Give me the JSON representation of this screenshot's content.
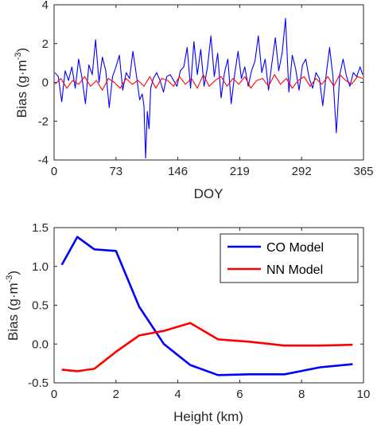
{
  "colors": {
    "co_model": "#0000ff",
    "nn_model": "#ff0000",
    "axes": "#262626",
    "background": "#ffffff"
  },
  "chart_data": [
    {
      "type": "line",
      "title": "",
      "xlabel": "DOY",
      "ylabel": {
        "prefix": "Bias (g·m",
        "superscript": "-3",
        "suffix": ")"
      },
      "xlim": [
        0,
        365
      ],
      "ylim": [
        -4,
        4
      ],
      "xticks": [
        0,
        73,
        146,
        219,
        292,
        365
      ],
      "xtick_labels": [
        "0",
        "73",
        "146",
        "219",
        "292",
        "365"
      ],
      "yticks": [
        -4,
        -2,
        0,
        2,
        4
      ],
      "ytick_labels": [
        "-4",
        "-2",
        "0",
        "2",
        "4"
      ],
      "grid": false,
      "legend": "none",
      "series": [
        {
          "color": "#0000ff",
          "x": [
            1,
            5,
            9,
            13,
            17,
            21,
            25,
            29,
            33,
            37,
            41,
            45,
            49,
            53,
            57,
            61,
            65,
            69,
            73,
            77,
            81,
            85,
            89,
            93,
            97,
            101,
            104,
            106,
            108,
            110,
            112,
            114,
            117,
            121,
            125,
            129,
            133,
            137,
            141,
            145,
            149,
            153,
            157,
            161,
            165,
            169,
            173,
            177,
            181,
            185,
            189,
            193,
            197,
            201,
            205,
            209,
            213,
            217,
            221,
            225,
            229,
            233,
            237,
            241,
            245,
            249,
            253,
            257,
            261,
            265,
            269,
            273,
            277,
            281,
            285,
            289,
            293,
            297,
            301,
            305,
            309,
            313,
            317,
            321,
            325,
            329,
            333,
            337,
            341,
            345,
            349,
            353,
            357,
            361,
            364
          ],
          "y": [
            0.5,
            0.3,
            -1.0,
            0.6,
            0.1,
            0.8,
            -0.3,
            1.2,
            0.2,
            -1.1,
            0.9,
            0.4,
            2.2,
            0.0,
            1.3,
            0.6,
            -1.3,
            0.3,
            0.8,
            1.4,
            -0.4,
            0.5,
            0.2,
            1.6,
            0.4,
            -0.9,
            -0.6,
            -1.2,
            -3.9,
            -1.5,
            -2.4,
            -0.3,
            0.2,
            0.5,
            0.1,
            -0.5,
            0.3,
            0.4,
            0.1,
            -0.2,
            0.6,
            0.8,
            1.8,
            -0.3,
            2.1,
            0.4,
            1.7,
            -0.2,
            0.8,
            2.4,
            0.3,
            1.5,
            -0.8,
            0.5,
            1.2,
            -1.1,
            0.4,
            1.6,
            0.2,
            0.8,
            -0.2,
            0.6,
            1.1,
            2.4,
            0.5,
            1.2,
            -0.4,
            1.0,
            2.3,
            0.6,
            1.5,
            3.3,
            -0.5,
            1.4,
            0.7,
            -0.4,
            0.9,
            1.2,
            0.2,
            -0.3,
            0.5,
            0.2,
            -1.2,
            0.4,
            1.8,
            0.3,
            -2.6,
            0.4,
            1.2,
            0.3,
            -0.2,
            0.5,
            0.3,
            0.8,
            0.4
          ]
        },
        {
          "color": "#ff0000",
          "x": [
            1,
            8,
            15,
            22,
            29,
            36,
            43,
            50,
            57,
            64,
            71,
            78,
            85,
            92,
            99,
            106,
            113,
            120,
            127,
            134,
            141,
            148,
            155,
            162,
            169,
            176,
            183,
            190,
            197,
            204,
            211,
            218,
            225,
            232,
            239,
            246,
            253,
            260,
            267,
            274,
            281,
            288,
            295,
            302,
            309,
            316,
            323,
            330,
            337,
            344,
            351,
            358,
            364
          ],
          "y": [
            -0.1,
            0.2,
            -0.3,
            0.1,
            -0.1,
            0.3,
            -0.2,
            0.1,
            -0.4,
            0.2,
            0.0,
            -0.3,
            0.2,
            -0.1,
            0.1,
            -0.2,
            0.3,
            -0.3,
            0.2,
            0.1,
            -0.2,
            0.3,
            -0.1,
            0.2,
            -0.3,
            0.4,
            -0.2,
            0.1,
            0.3,
            -0.2,
            0.2,
            -0.1,
            0.3,
            -0.3,
            0.1,
            0.2,
            -0.2,
            0.4,
            -0.1,
            0.2,
            -0.3,
            0.1,
            0.3,
            -0.2,
            0.2,
            -0.1,
            0.3,
            -0.2,
            0.4,
            0.1,
            -0.1,
            0.3,
            0.2
          ]
        }
      ]
    },
    {
      "type": "line",
      "title": "",
      "xlabel": "Height (km)",
      "ylabel": {
        "prefix": "Bias (g·m",
        "superscript": "-3",
        "suffix": ")"
      },
      "xlim": [
        0,
        10
      ],
      "ylim": [
        -0.5,
        1.5
      ],
      "xticks": [
        0,
        2,
        4,
        6,
        8,
        10
      ],
      "xtick_labels": [
        "0",
        "2",
        "4",
        "6",
        "8",
        "10"
      ],
      "yticks": [
        -0.5,
        0,
        0.5,
        1,
        1.5
      ],
      "ytick_labels": [
        "-0.5",
        "0.0",
        "0.5",
        "1.0",
        "1.5"
      ],
      "grid": false,
      "legend": "top-right",
      "series": [
        {
          "name": "CO Model",
          "color": "#0000ff",
          "x": [
            0.25,
            0.75,
            1.3,
            2.0,
            2.75,
            3.55,
            4.4,
            5.3,
            6.3,
            7.45,
            8.6,
            9.65
          ],
          "y": [
            1.02,
            1.38,
            1.22,
            1.2,
            0.48,
            0.0,
            -0.27,
            -0.4,
            -0.39,
            -0.39,
            -0.3,
            -0.26
          ]
        },
        {
          "name": "NN Model",
          "color": "#ff0000",
          "x": [
            0.25,
            0.75,
            1.3,
            2.0,
            2.75,
            3.55,
            4.4,
            5.3,
            6.3,
            7.45,
            8.6,
            9.65
          ],
          "y": [
            -0.33,
            -0.35,
            -0.32,
            -0.1,
            0.11,
            0.17,
            0.27,
            0.06,
            0.03,
            -0.02,
            -0.02,
            -0.01
          ]
        }
      ]
    }
  ]
}
